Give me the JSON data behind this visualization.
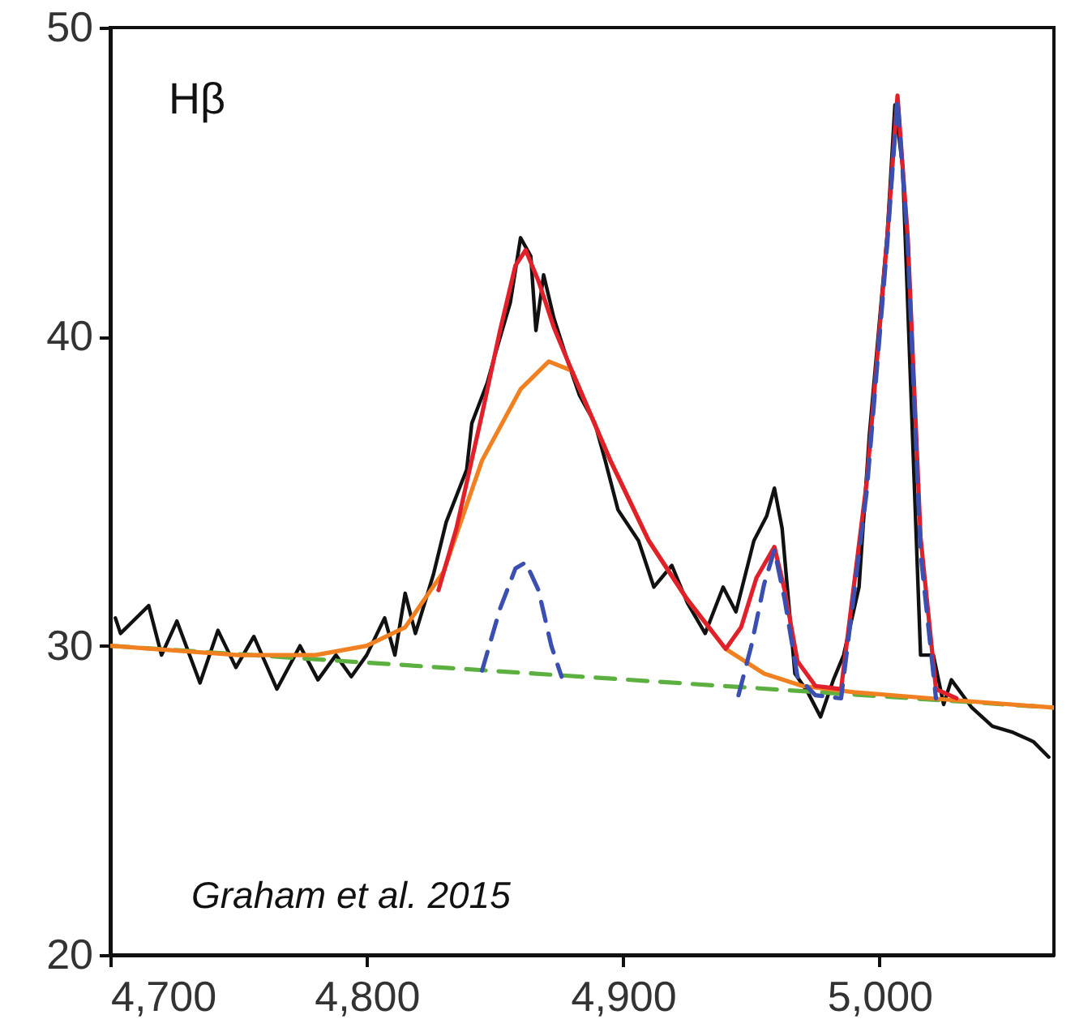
{
  "chart_data": {
    "type": "line",
    "annotations": [
      "Hβ",
      "Graham et al. 2015"
    ],
    "xlim": [
      4700,
      5068
    ],
    "xticks": [
      {
        "value": 4700,
        "label": "4,700"
      },
      {
        "value": 4800,
        "label": "4,800"
      },
      {
        "value": 4900,
        "label": "4,900"
      },
      {
        "value": 5000,
        "label": "5,000"
      }
    ],
    "ylim": [
      20,
      50
    ],
    "yticks": [
      20,
      30,
      40,
      50
    ],
    "grid": false,
    "series": [
      {
        "color": "#111111",
        "line_style": "solid",
        "x": [
          4702,
          4704,
          4715,
          4720,
          4726,
          4735,
          4742,
          4749,
          4756,
          4765,
          4774,
          4781,
          4788,
          4794,
          4800,
          4807,
          4811,
          4815,
          4819,
          4826,
          4831,
          4839,
          4841,
          4847,
          4850,
          4856,
          4860,
          4864,
          4866,
          4869,
          4873,
          4878,
          4883,
          4889,
          4893,
          4898,
          4906,
          4912,
          4919,
          4925,
          4932,
          4939,
          4944,
          4951,
          4956,
          4959,
          4962,
          4967,
          4972,
          4977,
          4982,
          4986,
          4992,
          4996,
          5003,
          5006,
          5009,
          5016,
          5021,
          5025,
          5028,
          5036,
          5044,
          5052,
          5060,
          5066
        ],
        "values": [
          30.9,
          30.4,
          31.3,
          29.7,
          30.8,
          28.8,
          30.5,
          29.3,
          30.3,
          28.6,
          30.0,
          28.9,
          29.7,
          29.0,
          29.7,
          30.9,
          29.7,
          31.7,
          30.4,
          32.3,
          34.0,
          35.7,
          37.2,
          38.5,
          39.4,
          41.1,
          43.2,
          42.6,
          40.2,
          42.0,
          40.6,
          39.3,
          38.1,
          37.2,
          36.0,
          34.4,
          33.4,
          31.9,
          32.6,
          31.4,
          30.4,
          31.9,
          31.1,
          33.4,
          34.2,
          35.1,
          33.8,
          29.1,
          28.5,
          27.7,
          28.9,
          29.7,
          31.9,
          36.8,
          43.3,
          47.5,
          45.5,
          29.7,
          29.7,
          28.1,
          28.9,
          28.0,
          27.4,
          27.2,
          26.9,
          26.4
        ]
      },
      {
        "color": "#5cb040",
        "line_style": "dashed",
        "x": [
          4700,
          5068
        ],
        "values": [
          30.0,
          28.0
        ]
      },
      {
        "color": "#f08020",
        "line_style": "solid",
        "x": [
          4700,
          4750,
          4780,
          4800,
          4815,
          4830,
          4845,
          4860,
          4871,
          4880,
          4895,
          4910,
          4925,
          4940,
          4955,
          4970,
          4990,
          5020,
          5068
        ],
        "values": [
          30.0,
          29.7,
          29.7,
          30.0,
          30.6,
          32.4,
          36.0,
          38.3,
          39.2,
          38.9,
          36.0,
          33.4,
          31.5,
          29.9,
          29.1,
          28.7,
          28.5,
          28.3,
          28.0
        ]
      },
      {
        "color": "#e0202a",
        "line_style": "solid",
        "x": [
          4828,
          4835,
          4845,
          4852,
          4858,
          4862,
          4867,
          4873,
          4880,
          4895,
          4910,
          4925,
          4940,
          4946,
          4952,
          4959,
          4963,
          4968,
          4975,
          4985,
          4995,
          5003,
          5007,
          5011,
          5016,
          5022,
          5030
        ],
        "values": [
          31.8,
          33.8,
          37.5,
          40.2,
          42.3,
          42.8,
          41.8,
          40.3,
          38.9,
          36.0,
          33.4,
          31.5,
          29.9,
          30.6,
          32.2,
          33.2,
          31.8,
          29.5,
          28.7,
          28.6,
          35.3,
          43.2,
          47.8,
          43.2,
          33.5,
          28.6,
          28.3
        ]
      },
      {
        "color": "#3a4fb0",
        "line_style": "dashed",
        "x": [
          4845,
          4852,
          4858,
          4862,
          4867,
          4872,
          4876,
          4910,
          4945,
          4950,
          4955,
          4959,
          4963,
          4968,
          4975,
          4985,
          4995,
          5003,
          5007,
          5011,
          5016,
          5022
        ],
        "values": [
          29.2,
          31.2,
          32.5,
          32.7,
          31.8,
          30.0,
          29.0,
          null,
          28.4,
          30.0,
          32.0,
          33.1,
          31.5,
          29.0,
          28.4,
          28.3,
          35.0,
          43.0,
          47.7,
          43.0,
          33.0,
          28.3
        ]
      }
    ]
  }
}
